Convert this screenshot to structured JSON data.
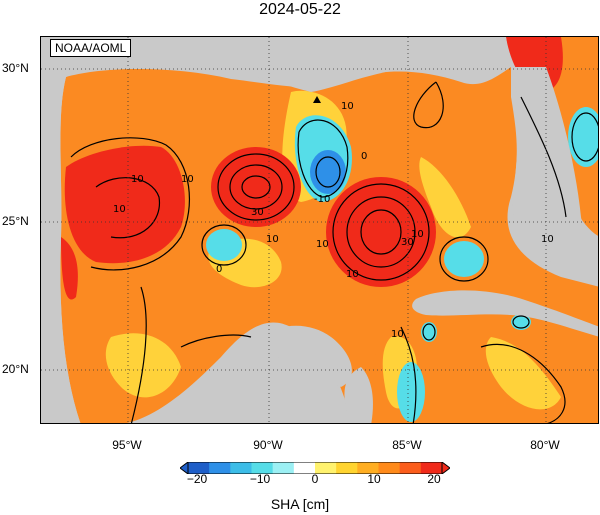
{
  "title": "2024-05-22",
  "source_label": "NOAA/AOML",
  "lat_labels": [
    "30°N",
    "25°N",
    "20°N"
  ],
  "lon_labels": [
    "95°W",
    "90°W",
    "85°W",
    "80°W"
  ],
  "contour_labels": [
    "10",
    "10",
    "10",
    "10",
    "0",
    "-10",
    "30",
    "30",
    "10",
    "10",
    "10",
    "10",
    "0",
    "10",
    "10"
  ],
  "colorbar": {
    "ticks": [
      "−20",
      "−10",
      "0",
      "10",
      "20"
    ],
    "label": "SHA [cm]",
    "colors": [
      "#1e5ec8",
      "#2e90e8",
      "#3cbde8",
      "#56dde8",
      "#9cf0f4",
      "#ffffff",
      "#fff26e",
      "#ffd430",
      "#ffae22",
      "#ff8a1a",
      "#fb5d1c",
      "#f02a1a"
    ]
  },
  "colors": {
    "land": "#c9c9c9",
    "strong_positive": "#f02a1a",
    "positive": "#fb8a22",
    "weak_positive": "#ffd23a",
    "negative": "#4ad4e8",
    "strong_negative": "#2e90e8"
  }
}
